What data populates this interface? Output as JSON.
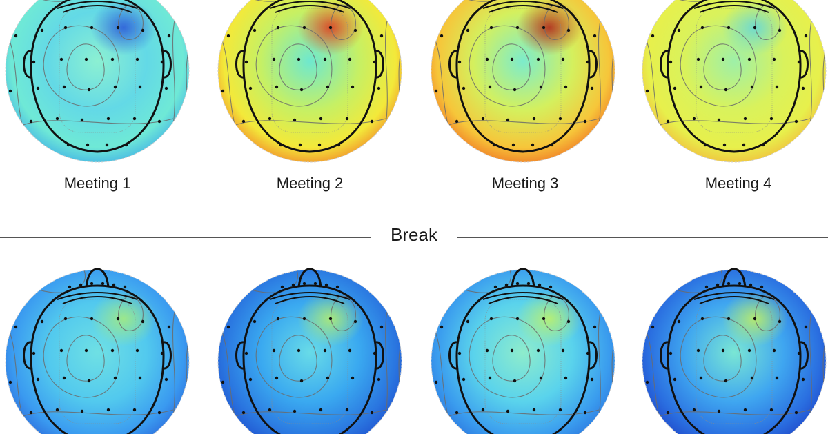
{
  "meetings_before_break": [
    {
      "label": "Meeting 1",
      "palette": [
        "#8cf0d2",
        "#63d9e6",
        "#6fe9d6",
        "#3aa8e8"
      ],
      "hot": "#2a55d8"
    },
    {
      "label": "Meeting 2",
      "palette": [
        "#6ee8cf",
        "#c6f064",
        "#f3e93a",
        "#f07a28"
      ],
      "hot": "#e0341e"
    },
    {
      "label": "Meeting 3",
      "palette": [
        "#7ceccc",
        "#d4f05e",
        "#f6c63a",
        "#ef6a22"
      ],
      "hot": "#b11c16"
    },
    {
      "label": "Meeting 4",
      "palette": [
        "#9ef0a8",
        "#d9f25c",
        "#e7f04c",
        "#f3b23a"
      ],
      "hot": "#5fd6e0"
    }
  ],
  "break_label": "Break",
  "meetings_after_break": [
    {
      "palette": [
        "#6fe0e4",
        "#52c9ee",
        "#3a9af0",
        "#2a62d8"
      ],
      "hot": "#a8ec7a"
    },
    {
      "palette": [
        "#68dbe8",
        "#3aa9f0",
        "#2a76e0",
        "#1e4ccc"
      ],
      "hot": "#b8f06a"
    },
    {
      "palette": [
        "#8eeccc",
        "#5ad3ec",
        "#3a9cee",
        "#2a70dc"
      ],
      "hot": "#c2f264"
    },
    {
      "palette": [
        "#7ae6d4",
        "#3fa6f0",
        "#2a6ee0",
        "#1e40c4"
      ],
      "hot": "#c6f25c"
    }
  ],
  "colors": {
    "outline": "#111111",
    "contour": "#6b6b6b",
    "electrode": "#111111"
  }
}
